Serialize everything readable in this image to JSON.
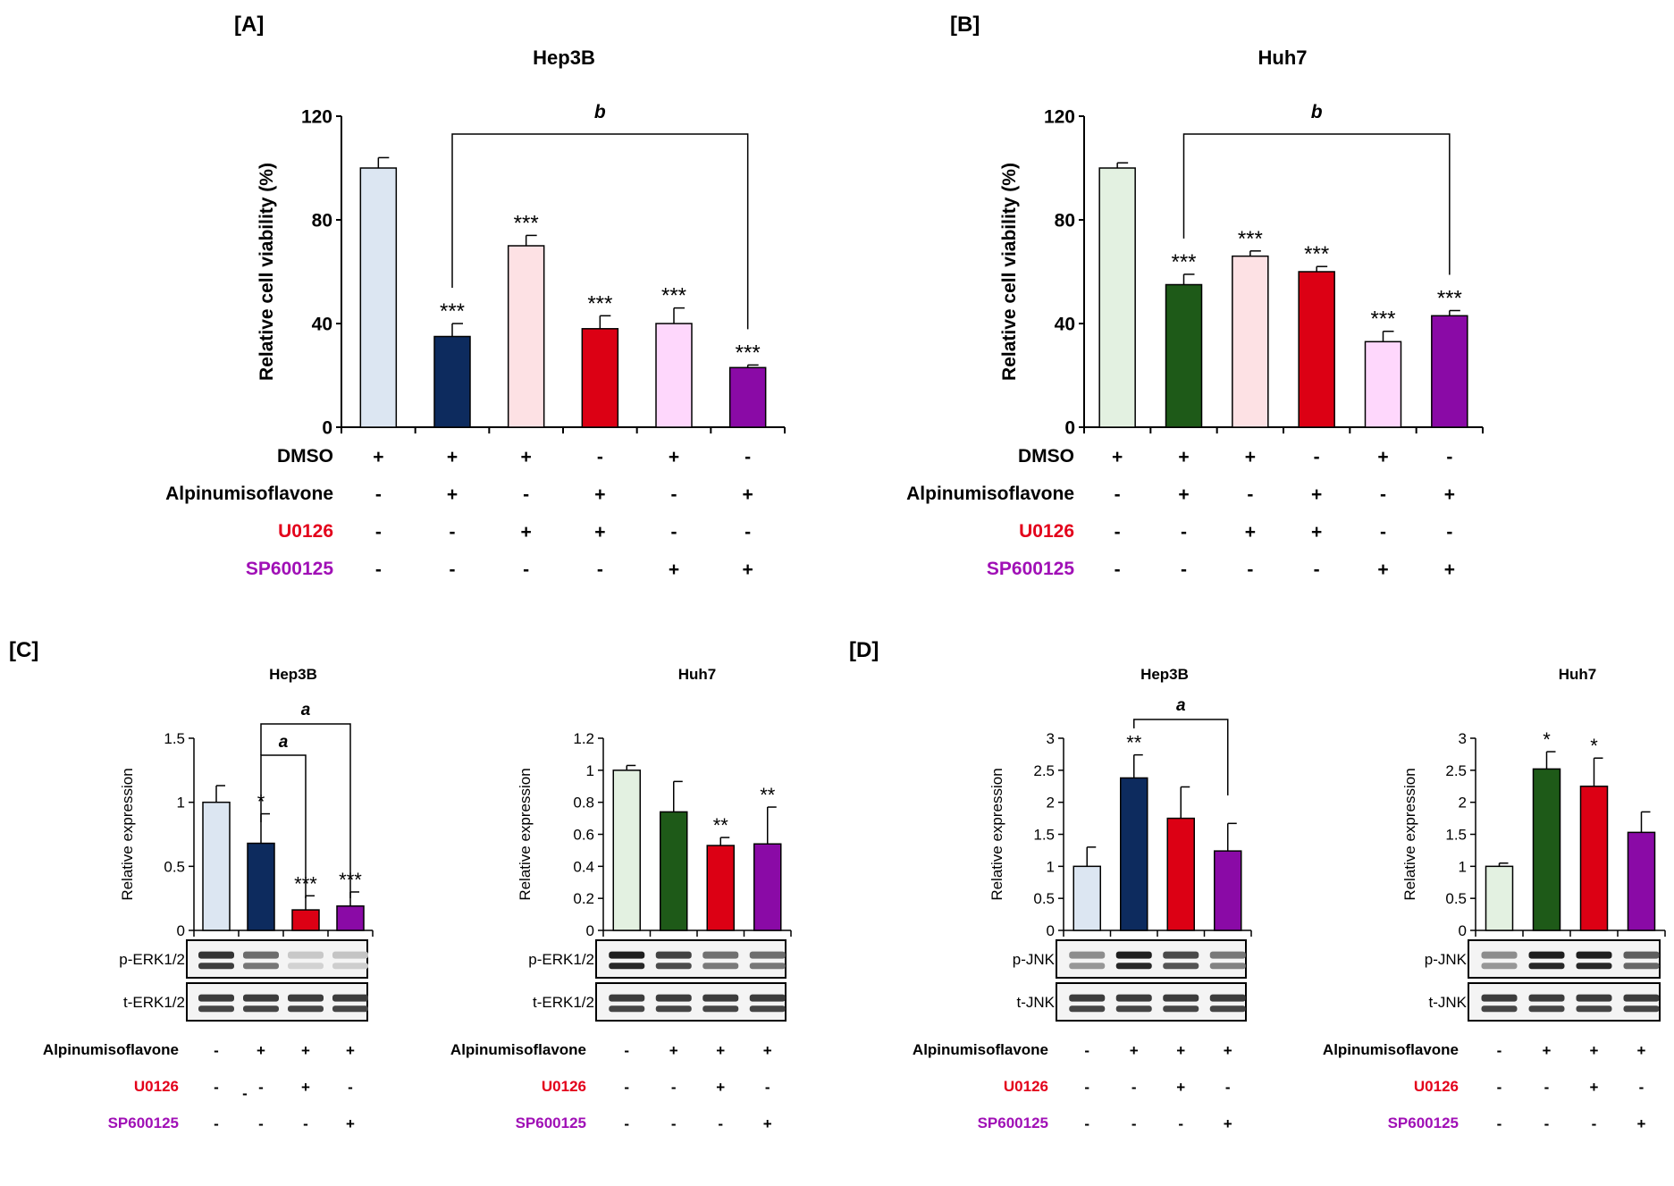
{
  "panels": {
    "A": {
      "letter": "[A]",
      "title": "Hep3B"
    },
    "B": {
      "letter": "[B]",
      "title": "Huh7"
    },
    "C": {
      "letter": "[C]"
    },
    "D": {
      "letter": "[D]"
    }
  },
  "colors": {
    "ctrl_A": "#dce6f2",
    "alp_A": "#0d2b5e",
    "ctrl_B": "#e3f1e1",
    "alp_B": "#1e5a18",
    "u0126": "#dc0014",
    "u0126_only": "#fde1e4",
    "sp_only": "#fed7fc",
    "sp600125": "#8a0aa6",
    "u0126_label": "#e3001b",
    "sp_label": "#a010b6"
  },
  "chart_data": [
    {
      "id": "A",
      "type": "bar",
      "title": "Hep3B",
      "panel": "[A]",
      "ylabel": "Relative cell viability (%)",
      "ylim": [
        0,
        120
      ],
      "yticks": [
        "0",
        "40",
        "80",
        "120"
      ],
      "values": [
        100,
        35,
        70,
        38,
        40,
        23
      ],
      "errors": [
        4,
        5,
        4,
        5,
        6,
        1
      ],
      "significance": [
        "",
        "***",
        "***",
        "***",
        "***",
        "***"
      ],
      "colorKeys": [
        "ctrl_A",
        "alp_A",
        "u0126_only",
        "u0126",
        "sp_only",
        "sp600125"
      ],
      "bracket_label": "b",
      "treatments": [
        {
          "label": "DMSO",
          "signs": [
            "+",
            "+",
            "+",
            "-",
            "+",
            "-"
          ]
        },
        {
          "label": "Alpinumisoflavone",
          "signs": [
            "-",
            "+",
            "-",
            "+",
            "-",
            "+"
          ]
        },
        {
          "label": "U0126",
          "signs": [
            "-",
            "-",
            "+",
            "+",
            "-",
            "-"
          ]
        },
        {
          "label": "SP600125",
          "signs": [
            "-",
            "-",
            "-",
            "-",
            "+",
            "+"
          ]
        }
      ]
    },
    {
      "id": "B",
      "type": "bar",
      "title": "Huh7",
      "panel": "[B]",
      "ylabel": "Relative cell viability (%)",
      "ylim": [
        0,
        120
      ],
      "yticks": [
        "0",
        "40",
        "80",
        "120"
      ],
      "values": [
        100,
        55,
        66,
        60,
        33,
        43
      ],
      "errors": [
        2,
        4,
        2,
        2,
        4,
        2
      ],
      "significance": [
        "",
        "***",
        "***",
        "***",
        "***",
        "***"
      ],
      "colorKeys": [
        "ctrl_B",
        "alp_B",
        "u0126_only",
        "u0126",
        "sp_only",
        "sp600125"
      ],
      "bracket_label": "b",
      "treatments": [
        {
          "label": "DMSO",
          "signs": [
            "+",
            "+",
            "+",
            "-",
            "+",
            "-"
          ]
        },
        {
          "label": "Alpinumisoflavone",
          "signs": [
            "-",
            "+",
            "-",
            "+",
            "-",
            "+"
          ]
        },
        {
          "label": "U0126",
          "signs": [
            "-",
            "-",
            "+",
            "+",
            "-",
            "-"
          ]
        },
        {
          "label": "SP600125",
          "signs": [
            "-",
            "-",
            "-",
            "-",
            "+",
            "+"
          ]
        }
      ]
    },
    {
      "id": "C1",
      "type": "bar",
      "title": "Hep3B",
      "panel": "[C]",
      "ylabel": "Relative expression",
      "ylim": [
        0,
        1.5
      ],
      "yticks": [
        "0",
        "0.5",
        "1",
        "1.5"
      ],
      "values": [
        1.0,
        0.68,
        0.16,
        0.19
      ],
      "errors": [
        0.13,
        0.23,
        0.11,
        0.11
      ],
      "significance": [
        "",
        "*",
        "***",
        "***"
      ],
      "colorKeys": [
        "ctrl_A",
        "alp_A",
        "u0126",
        "sp600125"
      ],
      "brackets": [
        "a",
        "a"
      ],
      "blots": [
        "p-ERK1/2",
        "t-ERK1/2"
      ],
      "treatments": [
        {
          "label": "Alpinumisoflavone",
          "signs": [
            "-",
            "+",
            "+",
            "+"
          ]
        },
        {
          "label": "U0126",
          "signs": [
            "-",
            "-",
            "+",
            "-"
          ]
        },
        {
          "label": "SP600125",
          "signs": [
            "-",
            "-",
            "-",
            "+"
          ]
        }
      ],
      "extra_dash": "-"
    },
    {
      "id": "C2",
      "type": "bar",
      "title": "Huh7",
      "ylabel": "Relative expression",
      "ylim": [
        0,
        1.2
      ],
      "yticks": [
        "0",
        "0.2",
        "0.4",
        "0.6",
        "0.8",
        "1",
        "1.2"
      ],
      "values": [
        1.0,
        0.74,
        0.53,
        0.54
      ],
      "errors": [
        0.03,
        0.19,
        0.05,
        0.23
      ],
      "significance": [
        "",
        "",
        "**",
        "**"
      ],
      "colorKeys": [
        "ctrl_B",
        "alp_B",
        "u0126",
        "sp600125"
      ],
      "blots": [
        "p-ERK1/2",
        "t-ERK1/2"
      ],
      "treatments": [
        {
          "label": "Alpinumisoflavone",
          "signs": [
            "-",
            "+",
            "+",
            "+"
          ]
        },
        {
          "label": "U0126",
          "signs": [
            "-",
            "-",
            "+",
            "-"
          ]
        },
        {
          "label": "SP600125",
          "signs": [
            "-",
            "-",
            "-",
            "+"
          ]
        }
      ]
    },
    {
      "id": "D1",
      "type": "bar",
      "title": "Hep3B",
      "panel": "[D]",
      "ylabel": "Relative expression",
      "ylim": [
        0,
        3
      ],
      "yticks": [
        "0",
        "0.5",
        "1",
        "1.5",
        "2",
        "2.5",
        "3"
      ],
      "values": [
        1.0,
        2.38,
        1.75,
        1.24
      ],
      "errors": [
        0.3,
        0.36,
        0.49,
        0.43
      ],
      "significance": [
        "",
        "**",
        "",
        ""
      ],
      "colorKeys": [
        "ctrl_A",
        "alp_A",
        "u0126",
        "sp600125"
      ],
      "brackets": [
        "a"
      ],
      "blots": [
        "p-JNK",
        "t-JNK"
      ],
      "treatments": [
        {
          "label": "Alpinumisoflavone",
          "signs": [
            "-",
            "+",
            "+",
            "+"
          ]
        },
        {
          "label": "U0126",
          "signs": [
            "-",
            "-",
            "+",
            "-"
          ]
        },
        {
          "label": "SP600125",
          "signs": [
            "-",
            "-",
            "-",
            "+"
          ]
        }
      ]
    },
    {
      "id": "D2",
      "type": "bar",
      "title": "Huh7",
      "ylabel": "Relative expression",
      "ylim": [
        0,
        3
      ],
      "yticks": [
        "0",
        "0.5",
        "1",
        "1.5",
        "2",
        "2.5",
        "3"
      ],
      "values": [
        1.0,
        2.52,
        2.25,
        1.53
      ],
      "errors": [
        0.05,
        0.27,
        0.44,
        0.32
      ],
      "significance": [
        "",
        "*",
        "*",
        ""
      ],
      "colorKeys": [
        "ctrl_B",
        "alp_B",
        "u0126",
        "sp600125"
      ],
      "blots": [
        "p-JNK",
        "t-JNK"
      ],
      "treatments": [
        {
          "label": "Alpinumisoflavone",
          "signs": [
            "-",
            "+",
            "+",
            "+"
          ]
        },
        {
          "label": "U0126",
          "signs": [
            "-",
            "-",
            "+",
            "-"
          ]
        },
        {
          "label": "SP600125",
          "signs": [
            "-",
            "-",
            "-",
            "+"
          ]
        }
      ]
    }
  ]
}
